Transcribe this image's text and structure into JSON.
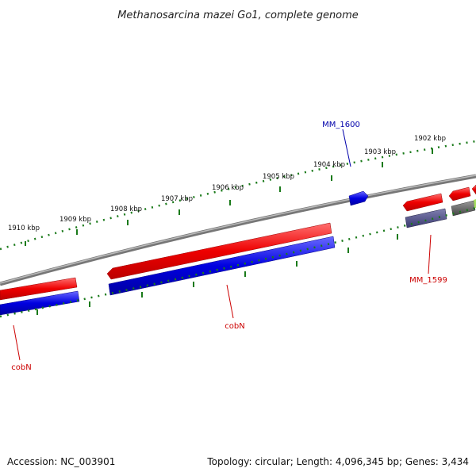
{
  "title": "Methanosarcina mazei Go1, complete genome",
  "ruler": {
    "ticks": [
      "1902 kbp",
      "1903 kbp",
      "1904 kbp",
      "1905 kbp",
      "1906 kbp",
      "1907 kbp",
      "1908 kbp",
      "1909 kbp",
      "1910 kbp"
    ]
  },
  "genes": {
    "mm1600": "MM_1600",
    "mm1599": "MM_1599",
    "cobn_center": "cobN",
    "cobn_left": "cobN"
  },
  "footer": {
    "accession": "Accession: NC_003901",
    "topology": "Topology: circular; Length: 4,096,345 bp; Genes: 3,434"
  },
  "colors": {
    "forward": "#ee0000",
    "reverse": "#0000dd",
    "backbone": "#888888",
    "ticks": "#1a7a1a",
    "other": "#555a80"
  }
}
